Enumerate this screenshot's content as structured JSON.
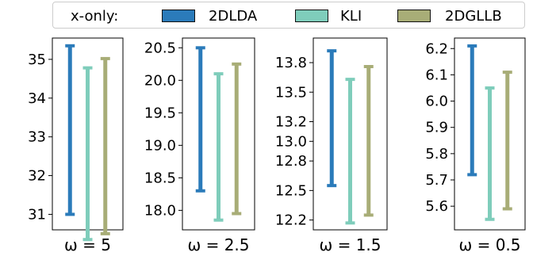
{
  "legend": {
    "title": "x-only:",
    "items": [
      {
        "label": "2DLDA",
        "color": "#2b7bba"
      },
      {
        "label": "KLI",
        "color": "#7fcdbb"
      },
      {
        "label": "2DGLLB",
        "color": "#a8ad77"
      }
    ]
  },
  "chart_data": [
    {
      "type": "errorbar",
      "xlabel": "ω = 5",
      "ylim": [
        30.6,
        35.55
      ],
      "yticks": [
        31,
        32,
        33,
        34,
        35
      ],
      "ytick_labels": [
        "31",
        "32",
        "33",
        "34",
        "35"
      ],
      "series": [
        {
          "name": "2DLDA",
          "low": 31.0,
          "high": 35.35
        },
        {
          "name": "KLI",
          "low": 30.35,
          "high": 34.78
        },
        {
          "name": "2DGLLB",
          "low": 30.5,
          "high": 35.02
        }
      ]
    },
    {
      "type": "errorbar",
      "xlabel": "ω = 2.5",
      "ylim": [
        17.7,
        20.65
      ],
      "yticks": [
        18.0,
        18.5,
        19.0,
        19.5,
        20.0,
        20.5
      ],
      "ytick_labels": [
        "18.0",
        "18.5",
        "19.0",
        "19.5",
        "20.0",
        "20.5"
      ],
      "series": [
        {
          "name": "2DLDA",
          "low": 18.3,
          "high": 20.5
        },
        {
          "name": "KLI",
          "low": 17.85,
          "high": 20.1
        },
        {
          "name": "2DGLLB",
          "low": 17.95,
          "high": 20.25
        }
      ]
    },
    {
      "type": "errorbar",
      "xlabel": "ω = 1.5",
      "ylim": [
        12.1,
        14.05
      ],
      "yticks": [
        12.2,
        12.5,
        12.8,
        13.0,
        13.2,
        13.5,
        13.8
      ],
      "ytick_labels": [
        "12.2",
        "12.5",
        "12.8",
        "13.0",
        "13.2",
        "13.5",
        "13.8"
      ],
      "series": [
        {
          "name": "2DLDA",
          "low": 12.55,
          "high": 13.92
        },
        {
          "name": "KLI",
          "low": 12.17,
          "high": 13.63
        },
        {
          "name": "2DGLLB",
          "low": 12.25,
          "high": 13.76
        }
      ]
    },
    {
      "type": "errorbar",
      "xlabel": "ω = 0.5",
      "ylim": [
        5.51,
        6.24
      ],
      "yticks": [
        5.6,
        5.7,
        5.8,
        5.9,
        6.0,
        6.1,
        6.2
      ],
      "ytick_labels": [
        "5.6",
        "5.7",
        "5.8",
        "5.9",
        "6.0",
        "6.1",
        "6.2"
      ],
      "series": [
        {
          "name": "2DLDA",
          "low": 5.72,
          "high": 6.21
        },
        {
          "name": "KLI",
          "low": 5.55,
          "high": 6.05
        },
        {
          "name": "2DGLLB",
          "low": 5.59,
          "high": 6.11
        }
      ]
    }
  ]
}
